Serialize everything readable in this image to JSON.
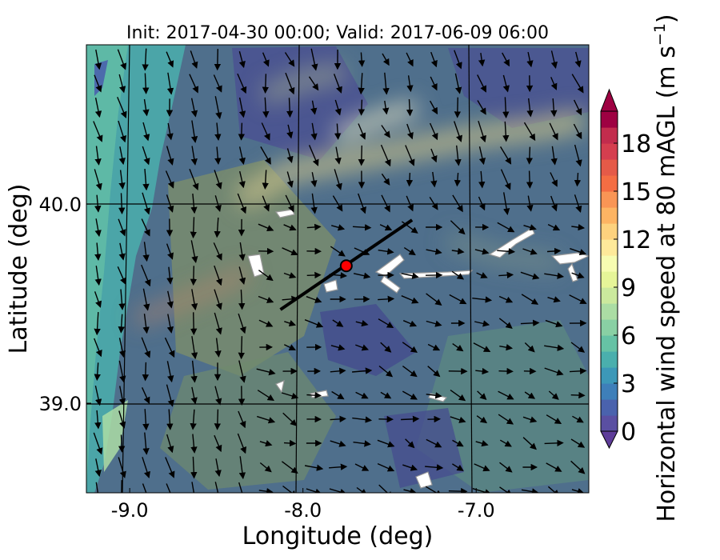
{
  "chart_data": {
    "type": "heatmap",
    "title": "Init: 2017-04-30 00:00; Valid: 2017-06-09 06:00",
    "xlabel": "Longitude (deg)",
    "ylabel": "Latitude (deg)",
    "xlim": [
      -9.25,
      -6.35
    ],
    "ylim": [
      38.55,
      40.8
    ],
    "xticks": [
      {
        "value": -9.0,
        "label": "-9.0"
      },
      {
        "value": -8.0,
        "label": "-8.0"
      },
      {
        "value": -7.0,
        "label": "-7.0"
      }
    ],
    "yticks": [
      {
        "value": 39.0,
        "label": "39.0"
      },
      {
        "value": 40.0,
        "label": "40.0"
      }
    ],
    "grid": true,
    "colorbar": {
      "label_main": "Horizontal wind speed at 80 mAGL (m s",
      "label_exp": "−1",
      "label_close": ")",
      "range": [
        0,
        20
      ],
      "tick_values": [
        0,
        3,
        6,
        9,
        12,
        15,
        18
      ],
      "tick_labels": [
        "0",
        "3",
        "6",
        "9",
        "12",
        "15",
        "18"
      ],
      "extend": "both",
      "colors": [
        "#5a4fa2",
        "#4a62ad",
        "#3e7fb9",
        "#3c98b8",
        "#4aafad",
        "#66c2a5",
        "#89d0a4",
        "#abdda4",
        "#cbe99d",
        "#e6f598",
        "#f7fcb1",
        "#fee99a",
        "#fdd27e",
        "#fdb463",
        "#f99555",
        "#f46d43",
        "#e55a48",
        "#d53e4f",
        "#c22c4d",
        "#9e0142"
      ]
    },
    "wind_speed_field_note_free": true,
    "transect": {
      "start": {
        "lon": -8.13,
        "lat": 39.47
      },
      "end": {
        "lon": -7.37,
        "lat": 39.92
      }
    },
    "site_marker": {
      "lon": -7.75,
      "lat": 39.69,
      "color": "#ff0000"
    }
  }
}
